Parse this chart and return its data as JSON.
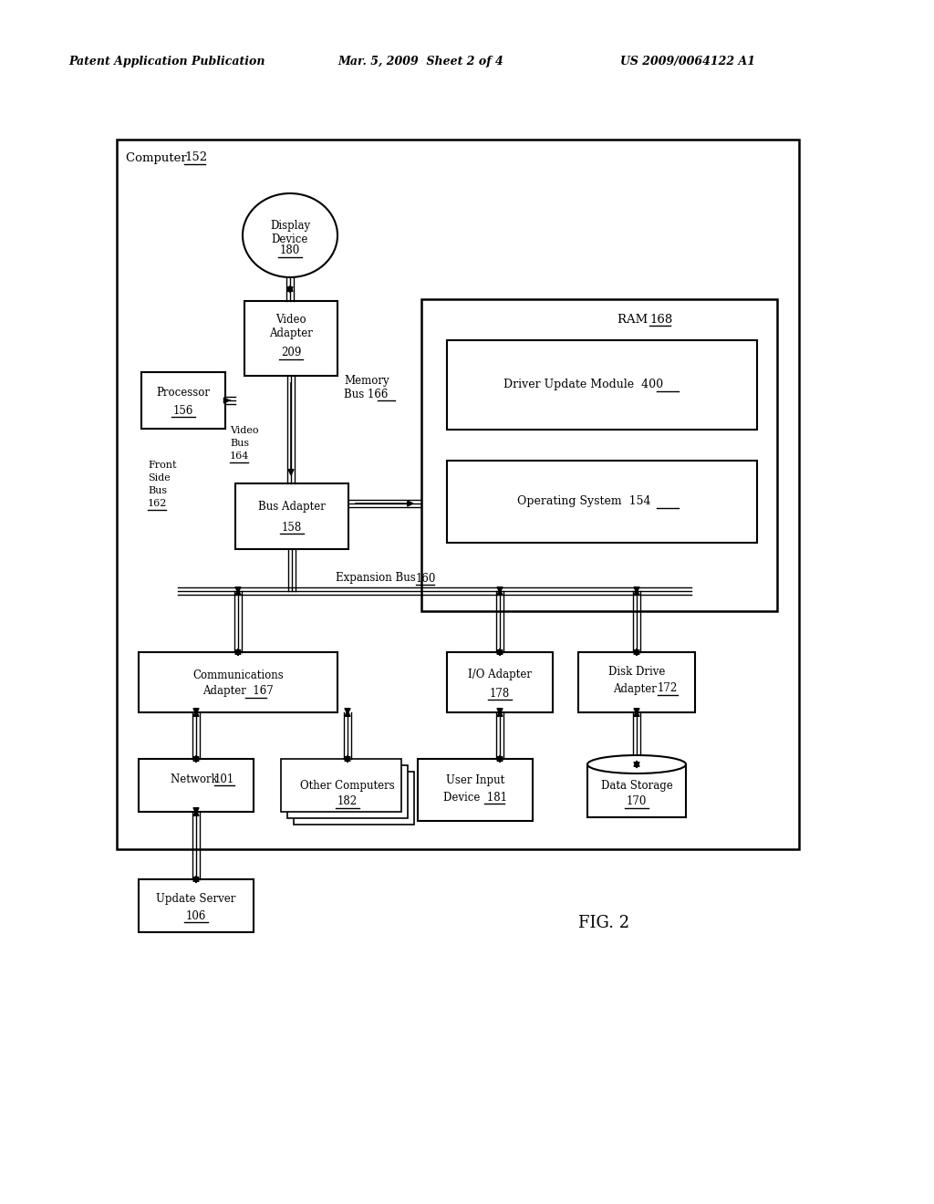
{
  "header_left": "Patent Application Publication",
  "header_mid": "Mar. 5, 2009  Sheet 2 of 4",
  "header_right": "US 2009/0064122 A1",
  "fig_label": "FIG. 2",
  "bg_color": "#ffffff",
  "fig_width": 10.24,
  "fig_height": 13.2,
  "dpi": 100
}
